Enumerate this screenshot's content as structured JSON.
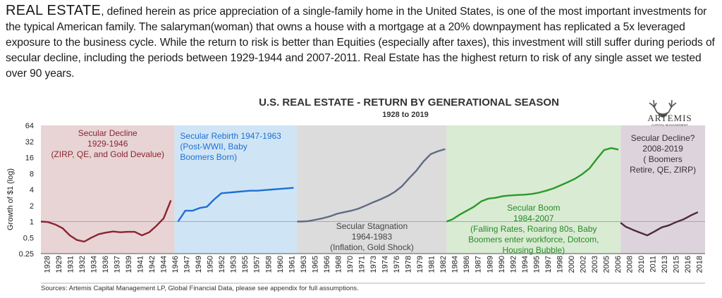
{
  "intro": {
    "lead": "REAL ESTATE",
    "body": ", defined herein as price appreciation of a single-family home in the United States, is one of the most important investments for the typical American family. The salaryman(woman) that owns a house with a mortgage at a 20% downpayment has replicated a 5x leveraged exposure to the business cycle. While the return to risk is better than Equities (especially after taxes), this investment will still suffer during periods of secular decline, including the periods between 1929-1944 and 2007-2011. Real Estate has the highest return to risk of any single asset we tested over 90 years."
  },
  "logo": {
    "text": "ARTEMIS",
    "sub": "CAPITAL MANAGEMENT"
  },
  "source": "Sources: Artemis Capital Management LP, Global Financial Data, please see appendix for full assumptions.",
  "chart_data": {
    "type": "line",
    "title": "U.S. REAL ESTATE - RETURN BY GENERATIONAL SEASON",
    "subtitle": "1928 to 2019",
    "xlabel": "",
    "ylabel": "Growth of $1 (log)",
    "y_scale": "log2",
    "ylim": [
      0.25,
      64
    ],
    "xlim": [
      1928,
      2020
    ],
    "y_ticks": [
      "64",
      "32",
      "16",
      "8",
      "4",
      "2",
      "1",
      "0.5",
      "0.25"
    ],
    "y_tick_values": [
      64,
      32,
      16,
      8,
      4,
      2,
      1,
      0.5,
      0.25
    ],
    "x_ticks": [
      "1928",
      "1929",
      "1931",
      "1932",
      "1934",
      "1936",
      "1937",
      "1939",
      "1941",
      "1942",
      "1944",
      "1946",
      "1947",
      "1949",
      "1950",
      "1952",
      "1953",
      "1955",
      "1957",
      "1958",
      "1960",
      "1961",
      "1963",
      "1965",
      "1966",
      "1968",
      "1970",
      "1971",
      "1973",
      "1974",
      "1976",
      "1978",
      "1979",
      "1981",
      "1982",
      "1984",
      "1986",
      "1987",
      "1989",
      "1990",
      "1992",
      "1994",
      "1995",
      "1997",
      "1998",
      "2000",
      "2002",
      "2003",
      "2005",
      "2006",
      "2008",
      "2010",
      "2011",
      "2013",
      "2015",
      "2016",
      "2018"
    ],
    "grid": false,
    "legend": "none",
    "regions": [
      {
        "start": 1928,
        "end": 1946.5,
        "color": "#e8d4d4",
        "line": "#8b2331",
        "label_color": "#8b2331",
        "labels": [
          "Secular Decline",
          "1929-1946",
          "(ZIRP, QE, and Gold Devalue)"
        ]
      },
      {
        "start": 1946.5,
        "end": 1963.5,
        "color": "#cfe5f6",
        "line": "#1f6fd1",
        "label_color": "#1f6fd1",
        "labels": [
          "Secular Rebirth 1947-1963",
          "(Post-WWII,  Baby",
          "Boomers Born)"
        ]
      },
      {
        "start": 1963.5,
        "end": 1984.2,
        "color": "#dcdcdc",
        "line": "#5f6b82",
        "label_color": "#444444",
        "labels": [
          "Secular Stagnation",
          "1964-1983",
          "(Inflation, Gold Shock)"
        ]
      },
      {
        "start": 1984.2,
        "end": 2008.3,
        "color": "#d9ebd3",
        "line": "#2a9a2a",
        "label_color": "#2a8a2a",
        "labels": [
          "Secular Boom",
          "1984-2007",
          "(Falling Rates, Roaring 80s, Baby",
          "Boomers enter workforce, Dotcom,",
          "Housing Bubble)"
        ]
      },
      {
        "start": 2008.3,
        "end": 2020,
        "color": "#ddd3dc",
        "line": "#4d2a38",
        "label_color": "#333333",
        "labels": [
          "Secular Decline?",
          "2008-2019",
          "( Boomers",
          "Retire, QE, ZIRP)"
        ]
      }
    ],
    "series": [
      {
        "x": [
          1928,
          1929,
          1930,
          1931,
          1932,
          1933,
          1934,
          1935,
          1936,
          1937,
          1938,
          1939,
          1940,
          1941,
          1942,
          1943,
          1944,
          1945,
          1946
        ],
        "values": [
          1.0,
          0.98,
          0.88,
          0.75,
          0.55,
          0.45,
          0.42,
          0.5,
          0.58,
          0.62,
          0.65,
          0.63,
          0.64,
          0.64,
          0.55,
          0.63,
          0.83,
          1.15,
          2.5
        ]
      },
      {
        "x": [
          1947,
          1948,
          1949,
          1950,
          1951,
          1952,
          1953,
          1954,
          1955,
          1956,
          1957,
          1958,
          1959,
          1960,
          1961,
          1962,
          1963
        ],
        "values": [
          1.0,
          1.6,
          1.6,
          1.8,
          1.9,
          2.6,
          3.4,
          3.5,
          3.6,
          3.7,
          3.8,
          3.8,
          3.9,
          4.0,
          4.1,
          4.2,
          4.3
        ]
      },
      {
        "x": [
          1963.5,
          1964,
          1965,
          1966,
          1967,
          1968,
          1969,
          1970,
          1971,
          1972,
          1973,
          1974,
          1975,
          1976,
          1977,
          1978,
          1979,
          1980,
          1981,
          1982,
          1983,
          1984
        ],
        "values": [
          1.0,
          1.0,
          1.02,
          1.08,
          1.15,
          1.25,
          1.4,
          1.5,
          1.6,
          1.75,
          2.0,
          2.3,
          2.6,
          3.0,
          3.6,
          4.6,
          6.5,
          9.0,
          13.5,
          18.5,
          21.0,
          23.0
        ]
      },
      {
        "x": [
          1984.2,
          1985,
          1986,
          1987,
          1988,
          1989,
          1990,
          1991,
          1992,
          1993,
          1994,
          1995,
          1996,
          1997,
          1998,
          1999,
          2000,
          2001,
          2002,
          2003,
          2004,
          2005,
          2006,
          2007,
          2008
        ],
        "values": [
          1.0,
          1.1,
          1.35,
          1.6,
          1.9,
          2.4,
          2.7,
          2.8,
          3.0,
          3.1,
          3.15,
          3.2,
          3.3,
          3.5,
          3.8,
          4.2,
          4.8,
          5.5,
          6.4,
          7.8,
          10.0,
          15.0,
          22.0,
          24.0,
          22.5
        ]
      },
      {
        "x": [
          2008.3,
          2009,
          2010,
          2011,
          2012,
          2013,
          2014,
          2015,
          2016,
          2017,
          2018,
          2019
        ],
        "values": [
          0.95,
          0.8,
          0.7,
          0.62,
          0.55,
          0.65,
          0.78,
          0.85,
          0.98,
          1.1,
          1.3,
          1.5
        ]
      }
    ]
  }
}
